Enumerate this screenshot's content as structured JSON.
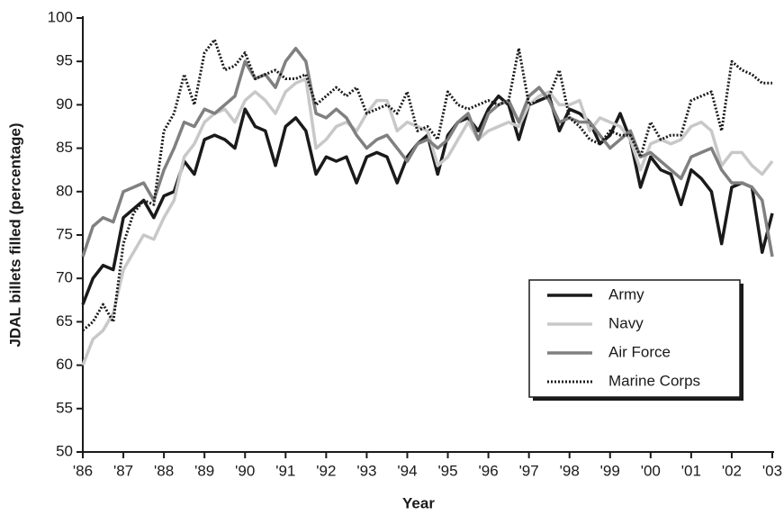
{
  "chart_data": {
    "type": "line",
    "xlabel": "Year",
    "ylabel": "JDAL billets filled (percentage)",
    "x": [
      1986,
      1986.25,
      1986.5,
      1986.75,
      1987,
      1987.25,
      1987.5,
      1987.75,
      1988,
      1988.25,
      1988.5,
      1988.75,
      1989,
      1989.25,
      1989.5,
      1989.75,
      1990,
      1990.25,
      1990.5,
      1990.75,
      1991,
      1991.25,
      1991.5,
      1991.75,
      1992,
      1992.25,
      1992.5,
      1992.75,
      1993,
      1993.25,
      1993.5,
      1993.75,
      1994,
      1994.25,
      1994.5,
      1994.75,
      1995,
      1995.25,
      1995.5,
      1995.75,
      1996,
      1996.25,
      1996.5,
      1996.75,
      1997,
      1997.25,
      1997.5,
      1997.75,
      1998,
      1998.25,
      1998.5,
      1998.75,
      1999,
      1999.25,
      1999.5,
      1999.75,
      2000,
      2000.25,
      2000.5,
      2000.75,
      2001,
      2001.25,
      2001.5,
      2001.75,
      2002,
      2002.25,
      2002.5,
      2002.75,
      2003
    ],
    "series": [
      {
        "name": "Army",
        "color": "#1a1a1a",
        "style": "solid",
        "values": [
          67,
          70,
          71.5,
          71,
          77,
          78,
          79,
          77,
          79.5,
          80,
          83.5,
          82,
          86,
          86.5,
          86,
          85,
          89.5,
          87.5,
          87,
          83,
          87.5,
          88.5,
          87,
          82,
          84,
          83.5,
          84,
          81,
          84,
          84.5,
          84,
          81,
          84,
          85.5,
          86.5,
          82,
          86.5,
          88,
          88.5,
          87,
          89.5,
          91,
          90,
          86,
          90,
          90.5,
          91,
          87,
          89.5,
          89,
          88,
          85.5,
          86.5,
          89,
          86,
          80.5,
          84,
          82.5,
          82,
          78.5,
          82.5,
          81.5,
          80,
          74,
          80.5,
          81,
          80.5,
          73,
          77.5
        ]
      },
      {
        "name": "Navy",
        "color": "#c8c8c8",
        "style": "solid",
        "values": [
          60,
          63,
          64,
          66,
          71,
          73,
          75,
          74.5,
          77,
          79,
          84,
          85.5,
          88,
          89,
          89.5,
          88,
          90.5,
          91.5,
          90.5,
          89,
          91.5,
          92.5,
          93,
          85,
          86,
          87.5,
          88,
          87,
          89,
          90.5,
          90.5,
          87,
          88,
          87.5,
          87,
          83,
          84,
          86,
          88,
          86,
          87,
          87.5,
          88,
          87.5,
          90,
          91,
          91.5,
          90,
          90,
          90.5,
          87,
          88.5,
          88,
          87.5,
          86,
          82.5,
          85.5,
          86,
          85.5,
          86,
          87.5,
          88,
          87,
          83,
          84.5,
          84.5,
          83,
          82,
          83.5
        ]
      },
      {
        "name": "Air Force",
        "color": "#808080",
        "style": "solid",
        "values": [
          72.5,
          76,
          77,
          76.5,
          80,
          80.5,
          81,
          79,
          82.5,
          85,
          88,
          87.5,
          89.5,
          89,
          90,
          91,
          95,
          93,
          93.5,
          92,
          95,
          96.5,
          95,
          89,
          88.5,
          89.5,
          88.5,
          86.5,
          85,
          86,
          86.5,
          85,
          83.5,
          85.5,
          86,
          85,
          86,
          88,
          89,
          86,
          89,
          90,
          90.5,
          88,
          91,
          92,
          90.5,
          88,
          88.5,
          88,
          88,
          86.5,
          85,
          86,
          87,
          84,
          84.5,
          83.5,
          82.5,
          81.5,
          84,
          84.5,
          85,
          82.5,
          81,
          81,
          80.5,
          79,
          72.5
        ]
      },
      {
        "name": "Marine Corps",
        "color": "#1a1a1a",
        "style": "dotted",
        "values": [
          64,
          65,
          67,
          65,
          74,
          77.5,
          79,
          78.5,
          87,
          89,
          93.5,
          90,
          96,
          97.5,
          94,
          94.5,
          96,
          93,
          93.5,
          94,
          93,
          93,
          93.5,
          90,
          91,
          92,
          91,
          92,
          89,
          89.5,
          90,
          89,
          91.5,
          87,
          87.5,
          86,
          91.5,
          90,
          89.5,
          90,
          90.5,
          90,
          90.5,
          96.5,
          90,
          90.5,
          91,
          94,
          88.5,
          87.5,
          86,
          85.5,
          87,
          86.5,
          86.5,
          84,
          88,
          86,
          86.5,
          86.5,
          90.5,
          91,
          91.5,
          87,
          95,
          94,
          93.5,
          92.5,
          92.5
        ]
      }
    ],
    "xlim": [
      1986,
      2003
    ],
    "xticks": [
      {
        "value": 1986,
        "label": "'86"
      },
      {
        "value": 1987,
        "label": "'87"
      },
      {
        "value": 1988,
        "label": "'88"
      },
      {
        "value": 1989,
        "label": "'89"
      },
      {
        "value": 1990,
        "label": "'90"
      },
      {
        "value": 1991,
        "label": "'91"
      },
      {
        "value": 1992,
        "label": "'92"
      },
      {
        "value": 1993,
        "label": "'93"
      },
      {
        "value": 1994,
        "label": "'94"
      },
      {
        "value": 1995,
        "label": "'95"
      },
      {
        "value": 1996,
        "label": "'96"
      },
      {
        "value": 1997,
        "label": "'97"
      },
      {
        "value": 1998,
        "label": "'98"
      },
      {
        "value": 1999,
        "label": "'99"
      },
      {
        "value": 2000,
        "label": "'00"
      },
      {
        "value": 2001,
        "label": "'01"
      },
      {
        "value": 2002,
        "label": "'02"
      },
      {
        "value": 2003,
        "label": "'03"
      }
    ],
    "ylim": [
      50,
      100
    ],
    "yticks": [
      50,
      55,
      60,
      65,
      70,
      75,
      80,
      85,
      90,
      95,
      100
    ],
    "grid": false,
    "legend": "lower right"
  }
}
